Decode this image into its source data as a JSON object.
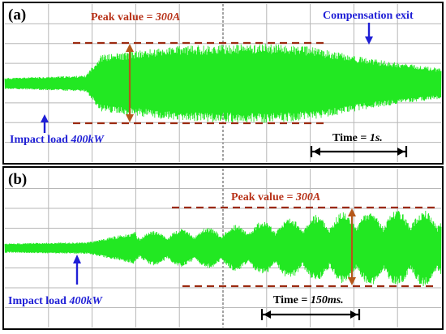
{
  "colors": {
    "signal": "#22e822",
    "peak": "#9b2a10",
    "arrow_blue": "#1f1fd6",
    "label_red": "#b8331a"
  },
  "chart_data": [
    {
      "type": "line",
      "panel_label": "(a)",
      "grid": true,
      "grid_divisions": {
        "x": 10,
        "y": 8
      },
      "time_per_division_s": 0.25,
      "amplitude_units": "A",
      "peak_value_text": "Peak value = ",
      "peak_value_em": "300A",
      "peak_value_A": 300,
      "annotations": {
        "impact_text": "Impact load ",
        "impact_em": "400kW",
        "impact_time_div": 1.85,
        "exit_text": "Compensation exit",
        "exit_time_div": 6.9,
        "time_text": "Time = ",
        "time_em": "1s.",
        "time_scale_s": 1
      },
      "envelope": [
        {
          "t": 0.0,
          "amp": 0.14
        },
        {
          "t": 1.85,
          "amp": 0.2
        },
        {
          "t": 2.2,
          "amp": 0.72
        },
        {
          "t": 4.0,
          "amp": 0.95
        },
        {
          "t": 6.0,
          "amp": 1.0
        },
        {
          "t": 7.0,
          "amp": 0.93
        },
        {
          "t": 8.4,
          "amp": 0.62
        },
        {
          "t": 10.0,
          "amp": 0.38
        }
      ]
    },
    {
      "type": "line",
      "panel_label": "(b)",
      "grid": true,
      "grid_divisions": {
        "x": 10,
        "y": 8
      },
      "time_per_division_s": 0.0375,
      "amplitude_units": "A",
      "peak_value_text": "Peak value = ",
      "peak_value_em": "300A",
      "peak_value_A": 300,
      "annotations": {
        "impact_text": "Impact load ",
        "impact_em": "400kW",
        "impact_time_div": 1.9,
        "time_text": "Time = ",
        "time_em": "150ms.",
        "time_scale_s": 0.15
      },
      "envelope": [
        {
          "t": 0.0,
          "amp": 0.12
        },
        {
          "t": 1.9,
          "amp": 0.15
        },
        {
          "t": 3.0,
          "amp": 0.42
        },
        {
          "t": 5.0,
          "amp": 0.55
        },
        {
          "t": 6.5,
          "amp": 0.78
        },
        {
          "t": 8.0,
          "amp": 0.95
        },
        {
          "t": 10.0,
          "amp": 1.0
        }
      ],
      "beat_periods_div": 0.62
    }
  ]
}
